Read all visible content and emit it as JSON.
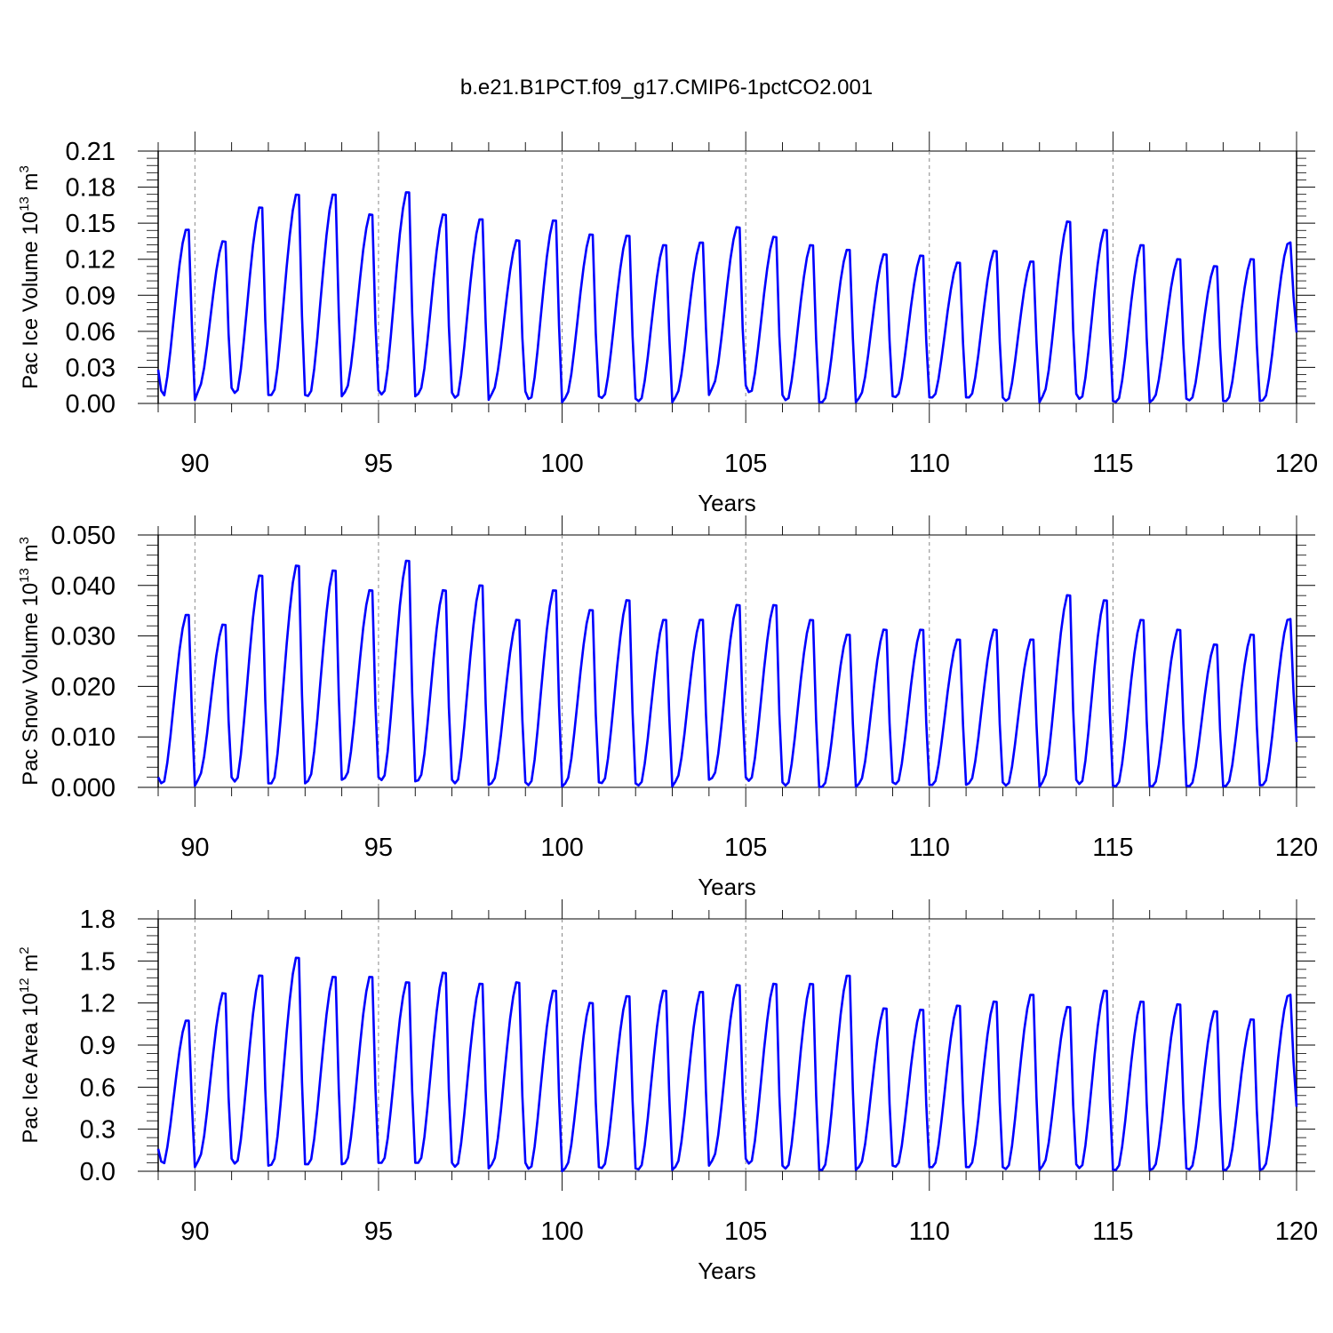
{
  "title": "b.e21.B1PCT.f09_g17.CMIP6-1pctCO2.001",
  "colors": {
    "series": "#0000ff",
    "axis": "#000000",
    "gridline": "#888888"
  },
  "chart_data": [
    {
      "type": "line",
      "xlabel": "Years",
      "ylabel": {
        "text": "Pac Ice Volume 10",
        "sup": "13",
        "unit": " m",
        "unit_sup": "3"
      },
      "xlim": [
        89.0,
        120.0
      ],
      "ylim": [
        0.0,
        0.21
      ],
      "xticks": [
        90,
        95,
        100,
        105,
        110,
        115,
        120
      ],
      "yticks": [
        0.0,
        0.03,
        0.06,
        0.09,
        0.12,
        0.15,
        0.18,
        0.21
      ],
      "ytick_labels": [
        "0.00",
        "0.03",
        "0.06",
        "0.09",
        "0.12",
        "0.15",
        "0.18",
        "0.21"
      ],
      "xgrid_dashed_at": [
        90,
        95,
        100,
        105,
        110,
        115
      ],
      "series": [
        {
          "peaks": [
            0.148,
            0.138,
            0.167,
            0.178,
            0.178,
            0.161,
            0.18,
            0.161,
            0.157,
            0.139,
            0.156,
            0.144,
            0.143,
            0.135,
            0.137,
            0.15,
            0.142,
            0.135,
            0.131,
            0.127,
            0.126,
            0.12,
            0.13,
            0.121,
            0.155,
            0.148,
            0.135,
            0.123,
            0.117,
            0.123,
            0.136
          ],
          "troughs": [
            0.003,
            0.013,
            0.007,
            0.007,
            0.006,
            0.011,
            0.006,
            0.009,
            0.003,
            0.01,
            0.001,
            0.006,
            0.004,
            0.001,
            0.007,
            0.015,
            0.007,
            0.001,
            0.001,
            0.006,
            0.005,
            0.005,
            0.005,
            0.001,
            0.008,
            0.002,
            0.001,
            0.004,
            0.002,
            0.002,
            0.003
          ],
          "start": 0.028,
          "end": 0.059
        }
      ]
    },
    {
      "type": "line",
      "xlabel": "Years",
      "ylabel": {
        "text": "Pac Snow Volume 10",
        "sup": "13",
        "unit": " m",
        "unit_sup": "3"
      },
      "xlim": [
        89.0,
        120.0
      ],
      "ylim": [
        0.0,
        0.05
      ],
      "xticks": [
        90,
        95,
        100,
        105,
        110,
        115,
        120
      ],
      "yticks": [
        0.0,
        0.01,
        0.02,
        0.03,
        0.04,
        0.05
      ],
      "ytick_labels": [
        "0.000",
        "0.010",
        "0.020",
        "0.030",
        "0.040",
        "0.050"
      ],
      "xgrid_dashed_at": [
        90,
        95,
        100,
        105,
        110,
        115
      ],
      "series": [
        {
          "peaks": [
            0.035,
            0.033,
            0.043,
            0.045,
            0.044,
            0.04,
            0.046,
            0.04,
            0.041,
            0.034,
            0.04,
            0.036,
            0.038,
            0.034,
            0.034,
            0.037,
            0.037,
            0.034,
            0.031,
            0.032,
            0.032,
            0.03,
            0.032,
            0.03,
            0.039,
            0.038,
            0.034,
            0.032,
            0.029,
            0.031,
            0.034
          ],
          "troughs": [
            0.0003,
            0.002,
            0.0008,
            0.0008,
            0.0015,
            0.002,
            0.0012,
            0.0015,
            0.0005,
            0.001,
            0.0002,
            0.001,
            0.0008,
            0.0002,
            0.0015,
            0.002,
            0.001,
            0.0001,
            0.0001,
            0.001,
            0.0005,
            0.0005,
            0.001,
            0.0001,
            0.0015,
            0.0003,
            0.0002,
            0.0003,
            0.0002,
            0.0004,
            0.0005
          ],
          "start": 0.002,
          "end": 0.009
        }
      ]
    },
    {
      "type": "line",
      "xlabel": "Years",
      "ylabel": {
        "text": "Pac Ice Area 10",
        "sup": "12",
        "unit": " m",
        "unit_sup": "2"
      },
      "xlim": [
        89.0,
        120.0
      ],
      "ylim": [
        0.0,
        1.8
      ],
      "xticks": [
        90,
        95,
        100,
        105,
        110,
        115,
        120
      ],
      "yticks": [
        0.0,
        0.3,
        0.6,
        0.9,
        1.2,
        1.5,
        1.8
      ],
      "ytick_labels": [
        "0.0",
        "0.3",
        "0.6",
        "0.9",
        "1.2",
        "1.5",
        "1.8"
      ],
      "xgrid_dashed_at": [
        90,
        95,
        100,
        105,
        110,
        115
      ],
      "series": [
        {
          "peaks": [
            1.1,
            1.3,
            1.43,
            1.56,
            1.42,
            1.42,
            1.38,
            1.45,
            1.37,
            1.38,
            1.32,
            1.23,
            1.28,
            1.32,
            1.31,
            1.36,
            1.37,
            1.37,
            1.43,
            1.19,
            1.18,
            1.21,
            1.24,
            1.29,
            1.2,
            1.32,
            1.24,
            1.22,
            1.17,
            1.11,
            1.28
          ],
          "troughs": [
            0.03,
            0.09,
            0.04,
            0.05,
            0.05,
            0.06,
            0.06,
            0.06,
            0.02,
            0.06,
            0.0,
            0.03,
            0.02,
            0.01,
            0.04,
            0.09,
            0.04,
            0.01,
            0.01,
            0.04,
            0.03,
            0.03,
            0.03,
            0.01,
            0.05,
            0.01,
            0.01,
            0.02,
            0.01,
            0.01,
            0.02
          ],
          "start": 0.16,
          "end": 0.46
        }
      ]
    }
  ]
}
